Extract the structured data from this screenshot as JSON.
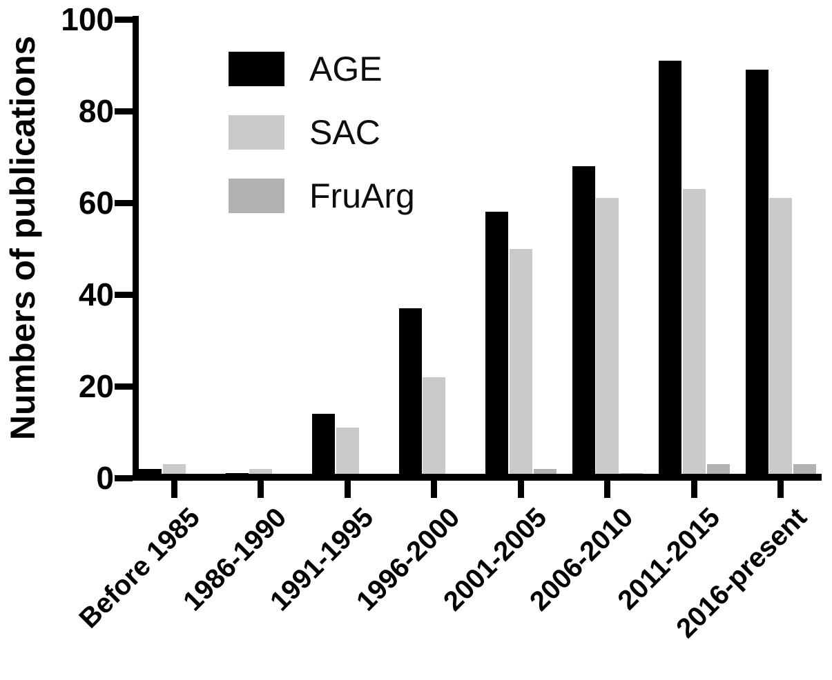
{
  "chart_data": {
    "type": "bar",
    "title": "",
    "xlabel": "",
    "ylabel": "Numbers of publications",
    "ylim": [
      0,
      100
    ],
    "yticks": [
      0,
      20,
      40,
      60,
      80,
      100
    ],
    "grid": false,
    "legend_position": "upper-left-inside",
    "categories": [
      "Before 1985",
      "1986-1990",
      "1991-1995",
      "1996-2000",
      "2001-2005",
      "2006-2010",
      "2011-2015",
      "2016-present"
    ],
    "series": [
      {
        "name": "AGE",
        "color": "#000000",
        "values": [
          2,
          1,
          14,
          37,
          58,
          68,
          91,
          89
        ]
      },
      {
        "name": "SAC",
        "color": "#cacaca",
        "values": [
          3,
          2,
          11,
          22,
          50,
          61,
          63,
          61
        ]
      },
      {
        "name": "FruArg",
        "color": "#b2b2b2",
        "values": [
          0,
          0,
          0,
          0,
          2,
          1,
          3,
          3
        ]
      }
    ],
    "axis_color": "#000000",
    "background_color": "#ffffff"
  }
}
